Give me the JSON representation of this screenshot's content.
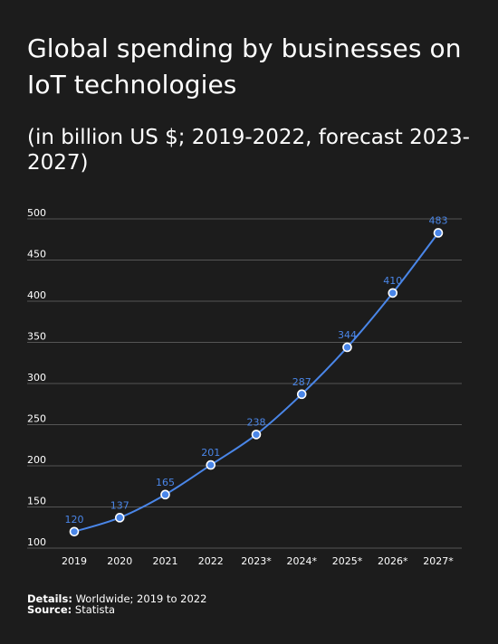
{
  "title": "Global spending by businesses on IoT technologies",
  "subtitle": "(in billion US $; 2019-2022, forecast 2023-2027)",
  "footer": {
    "details_label": "Details:",
    "details_text": "Worldwide; 2019 to 2022",
    "source_label": "Source:",
    "source_text": "Statista"
  },
  "colors": {
    "background": "#1c1c1c",
    "line": "#4a86e8",
    "grid": "#555555",
    "text": "#ffffff"
  },
  "chart_data": {
    "type": "line",
    "title": "Global spending by businesses on IoT technologies",
    "subtitle": "(in billion US $; 2019-2022, forecast 2023-2027)",
    "xlabel": "",
    "ylabel": "",
    "categories": [
      "2019",
      "2020",
      "2021",
      "2022",
      "2023*",
      "2024*",
      "2025*",
      "2026*",
      "2027*"
    ],
    "series": [
      {
        "values": [
          120,
          137,
          165,
          201,
          238,
          287,
          344,
          410,
          483
        ]
      }
    ],
    "ylim": [
      100,
      500
    ],
    "yticks": [
      100,
      150,
      200,
      250,
      300,
      350,
      400,
      450,
      500
    ],
    "grid": true,
    "data_labels": true,
    "legend": "none"
  }
}
